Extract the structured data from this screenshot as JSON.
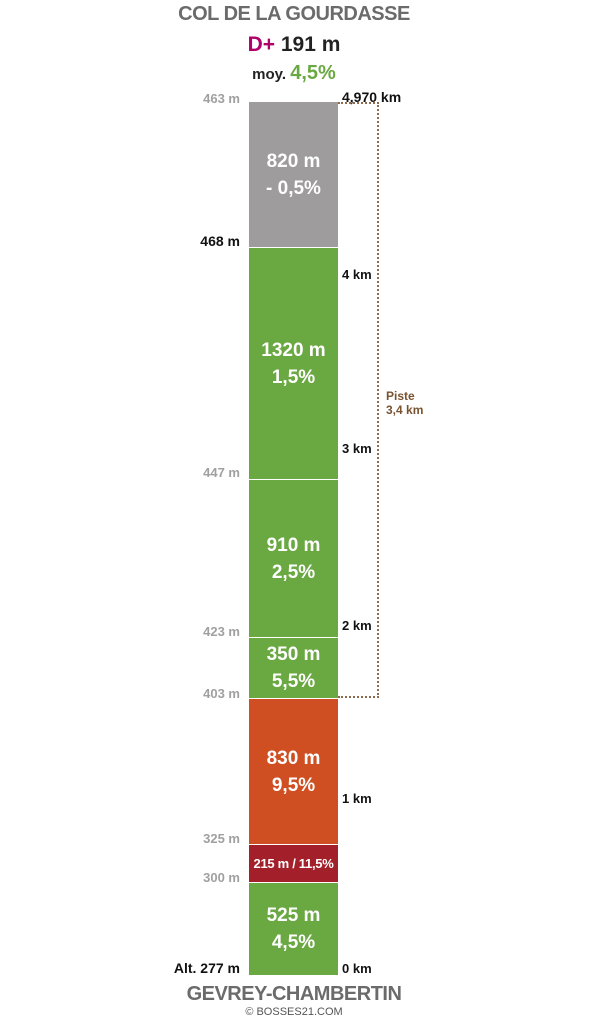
{
  "header": {
    "title": "COL DE LA GOURDASSE",
    "dplus_prefix": "D+",
    "dplus_value": "191 m",
    "moy_prefix": "moy.",
    "moy_value": "4,5%"
  },
  "total_distance": "4,970 km",
  "start_name": "GEVREY-CHAMBERTIN",
  "copyright": "© BOSSES21.COM",
  "colors": {
    "grey": "#9e9c9d",
    "green": "#6aa842",
    "orange": "#cf4f22",
    "darkred": "#a3202a",
    "piste": "#8b6a4e",
    "dplus": "#b0006a"
  },
  "segments": [
    {
      "color": "grey",
      "line1": "820 m",
      "line2": "- 0,5%"
    },
    {
      "color": "green",
      "line1": "1320 m",
      "line2": "1,5%"
    },
    {
      "color": "green",
      "line1": "910 m",
      "line2": "2,5%"
    },
    {
      "color": "green",
      "line1": "350 m",
      "line2": "5,5%"
    },
    {
      "color": "orange",
      "line1": "830 m",
      "line2": "9,5%"
    },
    {
      "color": "darkred",
      "line1": "215 m / 11,5%",
      "line2": ""
    },
    {
      "color": "green",
      "line1": "525 m",
      "line2": "4,5%"
    }
  ],
  "altitudes": [
    {
      "label": "463 m"
    },
    {
      "label": "468 m"
    },
    {
      "label": "447 m"
    },
    {
      "label": "423 m"
    },
    {
      "label": "403 m"
    },
    {
      "label": "325 m"
    },
    {
      "label": "300 m"
    },
    {
      "label": "Alt. 277 m"
    }
  ],
  "km_markers": [
    {
      "label": "4 km"
    },
    {
      "label": "3 km"
    },
    {
      "label": "2 km"
    },
    {
      "label": "1 km"
    },
    {
      "label": "0 km"
    }
  ],
  "piste": {
    "title": "Piste",
    "distance": "3,4 km"
  }
}
